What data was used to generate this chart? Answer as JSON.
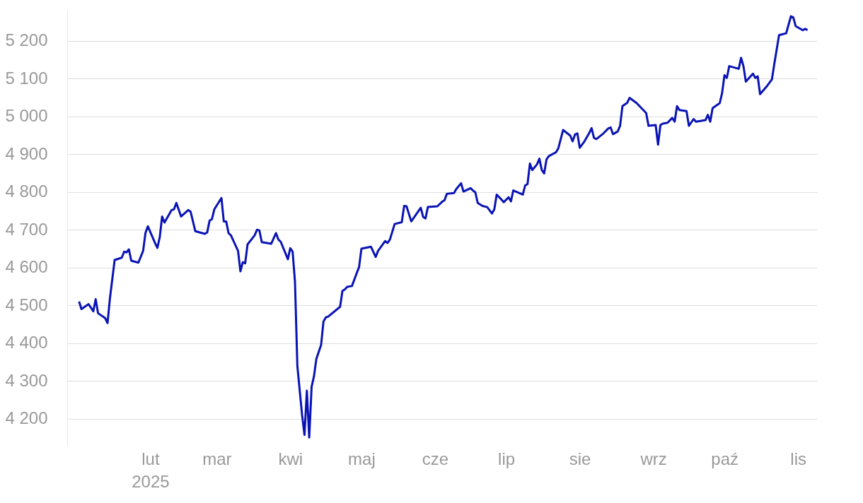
{
  "chart_data": {
    "type": "line",
    "xlim": [
      "2024-12-28",
      "2025-11-09"
    ],
    "ylim": [
      4130,
      5280
    ],
    "xticks": [
      {
        "value": "2025-02-01",
        "label": "lut\n2025"
      },
      {
        "value": "2025-03-01",
        "label": "mar"
      },
      {
        "value": "2025-04-01",
        "label": "kwi"
      },
      {
        "value": "2025-05-01",
        "label": "maj"
      },
      {
        "value": "2025-06-01",
        "label": "cze"
      },
      {
        "value": "2025-07-01",
        "label": "lip"
      },
      {
        "value": "2025-08-01",
        "label": "sie"
      },
      {
        "value": "2025-09-01",
        "label": "wrz"
      },
      {
        "value": "2025-10-01",
        "label": "paź"
      },
      {
        "value": "2025-11-01",
        "label": "lis"
      }
    ],
    "yticks": [
      {
        "value": 4200,
        "label": "4 200"
      },
      {
        "value": 4300,
        "label": "4 300"
      },
      {
        "value": 4400,
        "label": "4 400"
      },
      {
        "value": 4500,
        "label": "4 500"
      },
      {
        "value": 4600,
        "label": "4 600"
      },
      {
        "value": 4700,
        "label": "4 700"
      },
      {
        "value": 4800,
        "label": "4 800"
      },
      {
        "value": 4900,
        "label": "4 900"
      },
      {
        "value": 5000,
        "label": "5 000"
      },
      {
        "value": 5100,
        "label": "5 100"
      },
      {
        "value": 5200,
        "label": "5 200"
      }
    ],
    "grid": "y",
    "x": [
      "2025-01-02",
      "2025-01-03",
      "2025-01-06",
      "2025-01-08",
      "2025-01-09",
      "2025-01-10",
      "2025-01-13",
      "2025-01-14",
      "2025-01-15",
      "2025-01-17",
      "2025-01-20",
      "2025-01-21",
      "2025-01-22",
      "2025-01-23",
      "2025-01-24",
      "2025-01-27",
      "2025-01-29",
      "2025-01-30",
      "2025-01-31",
      "2025-02-03",
      "2025-02-04",
      "2025-02-05",
      "2025-02-06",
      "2025-02-07",
      "2025-02-10",
      "2025-02-11",
      "2025-02-12",
      "2025-02-14",
      "2025-02-17",
      "2025-02-18",
      "2025-02-20",
      "2025-02-24",
      "2025-02-25",
      "2025-02-26",
      "2025-02-27",
      "2025-02-28",
      "2025-03-03",
      "2025-03-04",
      "2025-03-05",
      "2025-03-06",
      "2025-03-07",
      "2025-03-10",
      "2025-03-11",
      "2025-03-12",
      "2025-03-13",
      "2025-03-14",
      "2025-03-17",
      "2025-03-18",
      "2025-03-19",
      "2025-03-20",
      "2025-03-24",
      "2025-03-26",
      "2025-03-27",
      "2025-03-28",
      "2025-03-31",
      "2025-04-01",
      "2025-04-02",
      "2025-04-03",
      "2025-04-04",
      "2025-04-05",
      "2025-04-06",
      "2025-04-07",
      "2025-04-08",
      "2025-04-09",
      "2025-04-10",
      "2025-04-11",
      "2025-04-12",
      "2025-04-14",
      "2025-04-15",
      "2025-04-16",
      "2025-04-17",
      "2025-04-22",
      "2025-04-23",
      "2025-04-24",
      "2025-04-25",
      "2025-04-27",
      "2025-04-29",
      "2025-04-30",
      "2025-05-01",
      "2025-05-05",
      "2025-05-07",
      "2025-05-08",
      "2025-05-11",
      "2025-05-12",
      "2025-05-13",
      "2025-05-15",
      "2025-05-18",
      "2025-05-19",
      "2025-05-20",
      "2025-05-22",
      "2025-05-26",
      "2025-05-27",
      "2025-05-28",
      "2025-05-29",
      "2025-06-02",
      "2025-06-04",
      "2025-06-05",
      "2025-06-06",
      "2025-06-09",
      "2025-06-10",
      "2025-06-12",
      "2025-06-13",
      "2025-06-16",
      "2025-06-17",
      "2025-06-18",
      "2025-06-19",
      "2025-06-21",
      "2025-06-23",
      "2025-06-25",
      "2025-06-26",
      "2025-06-27",
      "2025-06-29",
      "2025-06-30",
      "2025-07-02",
      "2025-07-03",
      "2025-07-04",
      "2025-07-08",
      "2025-07-09",
      "2025-07-10",
      "2025-07-11",
      "2025-07-12",
      "2025-07-14",
      "2025-07-15",
      "2025-07-16",
      "2025-07-17",
      "2025-07-18",
      "2025-07-19",
      "2025-07-22",
      "2025-07-23",
      "2025-07-25",
      "2025-07-28",
      "2025-07-29",
      "2025-07-30",
      "2025-07-31",
      "2025-08-01",
      "2025-08-03",
      "2025-08-05",
      "2025-08-06",
      "2025-08-07",
      "2025-08-08",
      "2025-08-11",
      "2025-08-13",
      "2025-08-14",
      "2025-08-15",
      "2025-08-17",
      "2025-08-18",
      "2025-08-19",
      "2025-08-21",
      "2025-08-22",
      "2025-08-25",
      "2025-08-27",
      "2025-08-29",
      "2025-08-30",
      "2025-09-02",
      "2025-09-03",
      "2025-09-04",
      "2025-09-05",
      "2025-09-07",
      "2025-09-09",
      "2025-09-10",
      "2025-09-11",
      "2025-09-12",
      "2025-09-15",
      "2025-09-16",
      "2025-09-18",
      "2025-09-19",
      "2025-09-23",
      "2025-09-24",
      "2025-09-25",
      "2025-09-26",
      "2025-09-29",
      "2025-09-30",
      "2025-10-01",
      "2025-10-02",
      "2025-10-03",
      "2025-10-07",
      "2025-10-08",
      "2025-10-09",
      "2025-10-10",
      "2025-10-13",
      "2025-10-14",
      "2025-10-15",
      "2025-10-16",
      "2025-10-19",
      "2025-10-21",
      "2025-10-22",
      "2025-10-24",
      "2025-10-27",
      "2025-10-29",
      "2025-10-30",
      "2025-10-31",
      "2025-11-03",
      "2025-11-04",
      "2025-11-05"
    ],
    "series": [
      {
        "color": "#0a14b4",
        "values": [
          4510,
          4490,
          4503,
          4484,
          4516,
          4479,
          4466,
          4453,
          4518,
          4620,
          4626,
          4642,
          4640,
          4648,
          4618,
          4613,
          4644,
          4692,
          4709,
          4665,
          4652,
          4680,
          4735,
          4719,
          4752,
          4754,
          4771,
          4735,
          4752,
          4748,
          4696,
          4689,
          4693,
          4724,
          4728,
          4754,
          4784,
          4722,
          4722,
          4691,
          4685,
          4644,
          4590,
          4614,
          4611,
          4661,
          4685,
          4700,
          4698,
          4667,
          4663,
          4691,
          4674,
          4668,
          4622,
          4651,
          4642,
          4562,
          4339,
          4274,
          4209,
          4157,
          4274,
          4150,
          4284,
          4312,
          4358,
          4395,
          4457,
          4468,
          4470,
          4496,
          4538,
          4542,
          4549,
          4551,
          4585,
          4601,
          4650,
          4655,
          4628,
          4644,
          4670,
          4665,
          4674,
          4715,
          4720,
          4763,
          4762,
          4722,
          4758,
          4734,
          4730,
          4760,
          4762,
          4774,
          4778,
          4795,
          4797,
          4808,
          4823,
          4801,
          4810,
          4804,
          4799,
          4771,
          4763,
          4760,
          4743,
          4754,
          4793,
          4780,
          4773,
          4786,
          4775,
          4804,
          4793,
          4817,
          4821,
          4875,
          4858,
          4873,
          4888,
          4858,
          4849,
          4886,
          4895,
          4905,
          4916,
          4964,
          4949,
          4934,
          4952,
          4955,
          4917,
          4934,
          4956,
          4969,
          4943,
          4940,
          4955,
          4968,
          4971,
          4953,
          4960,
          4975,
          5027,
          5036,
          5049,
          5035,
          5022,
          5009,
          4975,
          4977,
          4925,
          4977,
          4981,
          4983,
          4996,
          4986,
          5027,
          5017,
          5014,
          4975,
          4993,
          4986,
          4990,
          5004,
          4986,
          5022,
          5035,
          5062,
          5109,
          5102,
          5133,
          5126,
          5155,
          5133,
          5092,
          5113,
          5102,
          5106,
          5059,
          5081,
          5098,
          5139,
          5215,
          5220,
          5265,
          5262,
          5239,
          5228,
          5232,
          5228
        ]
      }
    ]
  }
}
